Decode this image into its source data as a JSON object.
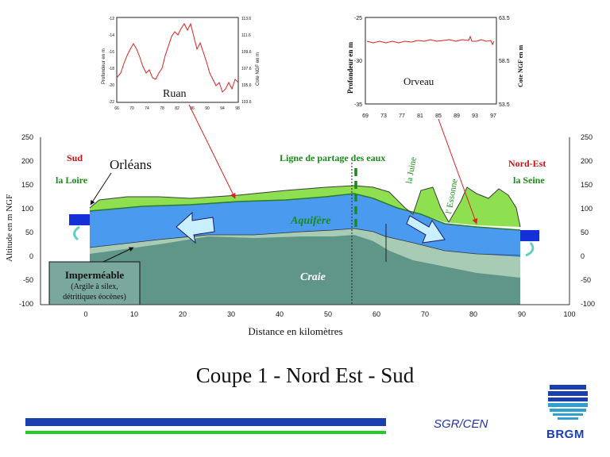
{
  "caption": "Coupe 1 - Nord Est - Sud",
  "footer": {
    "org": "SGR/CEN",
    "logo_text": "BRGM"
  },
  "section": {
    "y_axis_label": "Altitude en m NGF",
    "x_axis_label": "Distance en kilomètres",
    "y_ticks": [
      "250",
      "200",
      "150",
      "100",
      "50",
      "0",
      "-50",
      "-100"
    ],
    "x_ticks": [
      "0",
      "10",
      "20",
      "30",
      "40",
      "50",
      "60",
      "70",
      "80",
      "90",
      "100"
    ],
    "labels": {
      "sud": "Sud",
      "loire": "la Loire",
      "orleans": "Orléans",
      "divide": "Ligne de partage des eaux",
      "juine": "la Juine",
      "essonne": "l' Essonne",
      "nord_est": "Nord-Est",
      "seine": "la Seine",
      "aquifer": "Aquifère",
      "craie": "Craie",
      "impermeable_title": "Imperméable",
      "impermeable_sub1": "(Argile à silex,",
      "impermeable_sub2": "détritiques éocènes)"
    }
  },
  "inset_ruan": {
    "title": "Ruan",
    "left_label": "Profondeur en m",
    "right_label": "Cote NGF en m",
    "left_ticks": [
      "-12",
      "-14",
      "-16",
      "-18",
      "-20",
      "-22"
    ],
    "right_ticks": [
      "113.6",
      "111.6",
      "109.6",
      "107.6",
      "105.6",
      "103.6"
    ],
    "x_ticks": [
      "66",
      "70",
      "74",
      "78",
      "82",
      "86",
      "90",
      "94",
      "98"
    ]
  },
  "inset_orveau": {
    "title": "Orveau",
    "left_label": "Profondeur en m",
    "right_label": "Cote NGF en m",
    "left_ticks": [
      "-25",
      "-30",
      "-35"
    ],
    "right_ticks": [
      "63.5",
      "58.5",
      "53.5"
    ],
    "x_ticks": [
      "69",
      "73",
      "77",
      "81",
      "85",
      "89",
      "93",
      "97"
    ]
  },
  "colors": {
    "aquifer": "#4a9af0",
    "recharge_zone": "#8ee050",
    "upper_chalk": "#a8cbb6",
    "chalk": "#5f9688",
    "river_box": "#1530d8",
    "hydrograph": "#dd2020",
    "brand_blue": "#1a3fb0",
    "bar_green": "#22cc22"
  }
}
